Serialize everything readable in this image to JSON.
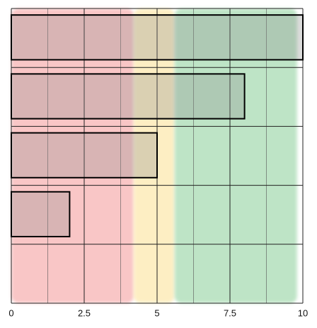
{
  "chart_data": {
    "type": "bullet",
    "categories": [
      null,
      null,
      null,
      null,
      null
    ],
    "values": [
      10,
      8,
      5,
      2,
      null
    ],
    "bands": [
      {
        "from": 0,
        "to": 4.2,
        "color": "#f7b3b3"
      },
      {
        "from": 4.2,
        "to": 5.6,
        "color": "#fde9b0"
      },
      {
        "from": 5.6,
        "to": 9.8,
        "color": "#a9dcb3"
      }
    ],
    "bar_color": "#8a8a8a",
    "xlim": [
      0,
      10
    ],
    "xticks": [
      0,
      2.5,
      5,
      7.5,
      10
    ],
    "grid": true
  }
}
